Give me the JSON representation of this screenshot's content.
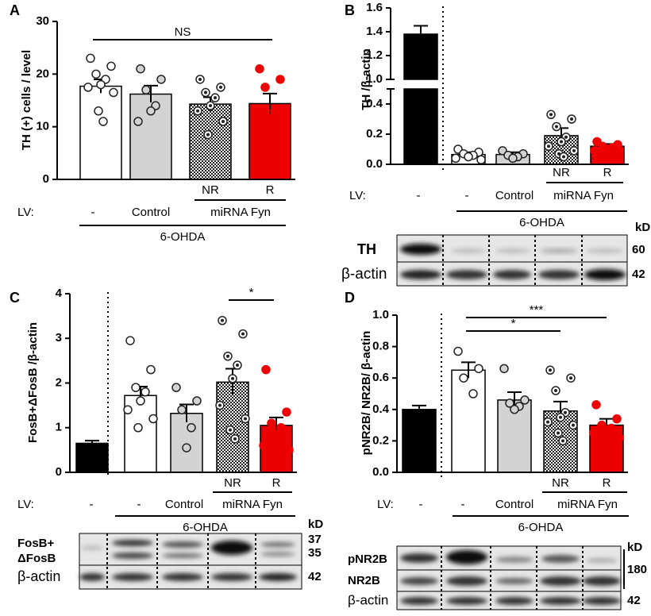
{
  "chart_data": [
    {
      "panel": "A",
      "type": "bar",
      "ylabel": "TH (+) cells / level",
      "categories": [
        null,
        null,
        "NR",
        "R"
      ],
      "values": [
        17.7,
        16.2,
        14.3,
        14.4
      ],
      "errors": [
        1.3,
        1.6,
        1.3,
        1.9
      ],
      "bar_colors": [
        "#ffffff",
        "#d3d3d3",
        "#ffffff",
        "#ee0000"
      ],
      "patterned": [
        false,
        false,
        true,
        false
      ],
      "points": [
        [
          23,
          21.5,
          20,
          19,
          18,
          17.5,
          16.5,
          13,
          11
        ],
        [
          21,
          19,
          17,
          14,
          13,
          11
        ],
        [
          19,
          17.5,
          16.5,
          15.5,
          14,
          13,
          11,
          8.5
        ],
        [
          21,
          19,
          17.5,
          13,
          10.5,
          8.5,
          7.5
        ]
      ],
      "ylim": [
        0,
        30
      ],
      "yticks": [
        0,
        10,
        20,
        30
      ],
      "lv_label": "LV:",
      "lv_labels": [
        "-",
        "Control",
        "miRNA Fyn"
      ],
      "treatment": "6-OHDA",
      "annotations": [
        "NS"
      ]
    },
    {
      "panel": "B",
      "type": "bar",
      "ylabel": "TH /β-actin",
      "categories": [
        null,
        null,
        null,
        "NR",
        "R"
      ],
      "values": [
        1.38,
        0.065,
        0.065,
        0.19,
        0.12
      ],
      "errors": [
        0.07,
        0.015,
        0.015,
        0.05,
        0.015
      ],
      "bar_colors": [
        "#000000",
        "#ffffff",
        "#d3d3d3",
        "#ffffff",
        "#ee0000"
      ],
      "patterned": [
        false,
        false,
        false,
        true,
        false
      ],
      "points": [
        [],
        [
          0.1,
          0.08,
          0.07,
          0.06,
          0.05,
          0.04,
          0.03
        ],
        [
          0.09,
          0.07,
          0.06,
          0.05,
          0.04
        ],
        [
          0.33,
          0.3,
          0.25,
          0.18,
          0.15,
          0.12,
          0.09,
          0.07,
          0.05
        ],
        [
          0.15,
          0.13,
          0.12,
          0.11,
          0.1,
          0.09
        ]
      ],
      "ylim": [
        0,
        1.6
      ],
      "ybreak": [
        0.5,
        1.0
      ],
      "yticks": [
        {
          "value": 0,
          "label": "0.0"
        },
        0.2,
        0.4,
        {
          "value": 1,
          "label": "1.0"
        },
        1.2,
        1.4,
        1.6
      ],
      "lv_label": "LV:",
      "lv_labels": [
        "-",
        "-",
        "Control",
        "miRNA Fyn"
      ],
      "treatment": "6-OHDA",
      "annotations": []
    },
    {
      "panel": "C",
      "type": "bar",
      "ylabel": "FosB+ΔFosB /β-actin",
      "categories": [
        null,
        null,
        null,
        "NR",
        "R"
      ],
      "values": [
        0.65,
        1.72,
        1.32,
        2.02,
        1.05
      ],
      "errors": [
        0.06,
        0.2,
        0.2,
        0.3,
        0.18
      ],
      "bar_colors": [
        "#000000",
        "#ffffff",
        "#d3d3d3",
        "#ffffff",
        "#ee0000"
      ],
      "patterned": [
        false,
        false,
        false,
        true,
        false
      ],
      "points": [
        [],
        [
          2.95,
          2.3,
          1.9,
          1.8,
          1.6,
          1.4,
          1.2,
          1.0
        ],
        [
          1.9,
          1.6,
          1.4,
          1.0,
          0.55
        ],
        [
          3.4,
          3.1,
          2.6,
          2.4,
          2.1,
          1.5,
          1.2,
          0.95,
          0.75
        ],
        [
          2.3,
          1.35,
          1.1,
          1.0,
          0.85,
          0.6,
          0.5
        ]
      ],
      "ylim": [
        0,
        4
      ],
      "yticks": [
        0,
        1,
        2,
        3,
        4
      ],
      "lv_label": "LV:",
      "lv_labels": [
        "-",
        "-",
        "Control",
        "miRNA Fyn"
      ],
      "treatment": "6-OHDA",
      "annotations": [
        "*"
      ]
    },
    {
      "panel": "D",
      "type": "bar",
      "ylabel": "pNR2B/ NR2B/ β-actin",
      "categories": [
        null,
        null,
        null,
        "NR",
        "R"
      ],
      "values": [
        0.4,
        0.65,
        0.46,
        0.39,
        0.3
      ],
      "errors": [
        0.025,
        0.05,
        0.05,
        0.06,
        0.04
      ],
      "bar_colors": [
        "#000000",
        "#ffffff",
        "#d3d3d3",
        "#ffffff",
        "#ee0000"
      ],
      "patterned": [
        false,
        false,
        false,
        true,
        false
      ],
      "points": [
        [],
        [
          0.77,
          0.66,
          0.6,
          0.5
        ],
        [
          0.66,
          0.46,
          0.44,
          0.42,
          0.4
        ],
        [
          0.65,
          0.6,
          0.52,
          0.38,
          0.35,
          0.32,
          0.3,
          0.25,
          0.2
        ],
        [
          0.43,
          0.34,
          0.3,
          0.28,
          0.27,
          0.25,
          0.22
        ]
      ],
      "ylim": [
        0,
        1.0
      ],
      "yticks": [
        {
          "value": 0,
          "label": "0.0"
        },
        0.2,
        0.4,
        0.6,
        0.8,
        {
          "value": 1,
          "label": "1.0"
        }
      ],
      "lv_label": "LV:",
      "lv_labels": [
        "-",
        "-",
        "Control",
        "miRNA Fyn"
      ],
      "treatment": "6-OHDA",
      "annotations": [
        "*",
        "***"
      ]
    }
  ],
  "blots": {
    "B": {
      "unit": "kD",
      "proteins": [
        "TH",
        "β-actin"
      ],
      "weights": [
        "60",
        "42"
      ]
    },
    "C": {
      "unit": "kD",
      "proteins": [
        "FosB+",
        "ΔFosB",
        "β-actin"
      ],
      "weights": [
        "37",
        "35",
        "42"
      ]
    },
    "D": {
      "unit": "kD",
      "proteins": [
        "pNR2B",
        "NR2B",
        "β-actin"
      ],
      "weights": [
        "180",
        "42"
      ]
    }
  }
}
